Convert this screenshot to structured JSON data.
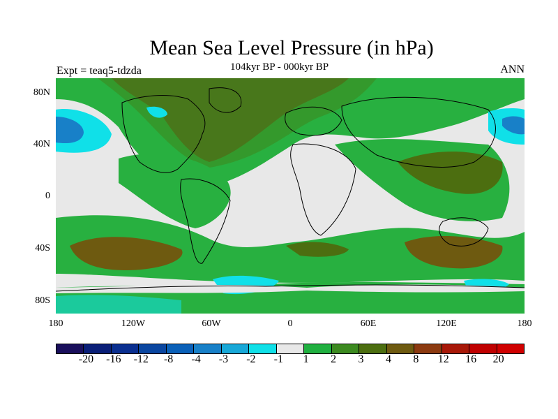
{
  "title": "Mean Sea Level Pressure (in hPa)",
  "subtitle": "104kyr BP - 000kyr BP",
  "left_label": "Expt = teaq5-tdzda",
  "right_label": "ANN",
  "y_ticks": [
    "80N",
    "40N",
    "0",
    "40S",
    "80S"
  ],
  "x_ticks": [
    "180",
    "120W",
    "60W",
    "0",
    "60E",
    "120E",
    "180"
  ],
  "colorbar": {
    "labels": [
      "-20",
      "-16",
      "-12",
      "-8",
      "-4",
      "-3",
      "-2",
      "-1",
      "1",
      "2",
      "3",
      "4",
      "8",
      "12",
      "16",
      "20"
    ],
    "colors": [
      "#1a0f5c",
      "#0a1f78",
      "#0a2f90",
      "#0a46a0",
      "#0a60b8",
      "#1880c8",
      "#18a8d8",
      "#10e0e8",
      "#e8e8e8",
      "#20b040",
      "#3c8a20",
      "#4c6e10",
      "#6e5a10",
      "#8c3a10",
      "#a81808",
      "#c00000",
      "#d00000"
    ]
  },
  "map": {
    "colors": {
      "ocean_neutral": "#e8e8e8",
      "green_light": "#28b040",
      "green_dark": "#3c8a20",
      "olive": "#5a6a18",
      "brown": "#6e5a10",
      "cyan": "#10e0e8",
      "blue": "#1880c8",
      "coast": "#000000"
    }
  }
}
